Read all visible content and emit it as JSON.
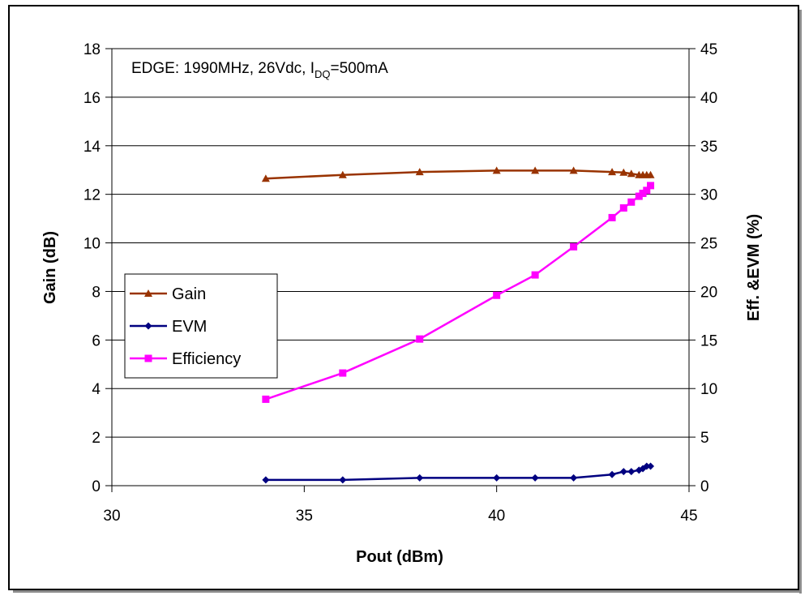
{
  "chart_data": {
    "type": "line",
    "annotation": {
      "prefix": "EDGE:  1990MHz, 26Vdc, I",
      "subscript": "DQ",
      "suffix": "=500mA"
    },
    "xlabel": "Pout (dBm)",
    "ylabel": "Gain (dB)",
    "y2label": "Eff. &EVM (%)",
    "xlim": [
      30,
      45
    ],
    "ylim": [
      0,
      18
    ],
    "y2lim": [
      0,
      45
    ],
    "xticks": [
      30,
      35,
      40,
      45
    ],
    "yticks": [
      0,
      2,
      4,
      6,
      8,
      10,
      12,
      14,
      16,
      18
    ],
    "y2ticks": [
      0,
      5,
      10,
      15,
      20,
      25,
      30,
      35,
      40,
      45
    ],
    "grid": "horizontal",
    "legend_position": "left-center",
    "series": [
      {
        "name": "Gain",
        "axis": "left",
        "color": "#993300",
        "marker": "triangle",
        "x": [
          34,
          36,
          38,
          40,
          41,
          42,
          43,
          43.3,
          43.5,
          43.7,
          43.8,
          43.9,
          44
        ],
        "y": [
          12.65,
          12.8,
          12.92,
          12.98,
          12.98,
          12.98,
          12.92,
          12.9,
          12.85,
          12.8,
          12.8,
          12.8,
          12.8
        ]
      },
      {
        "name": "EVM",
        "axis": "right",
        "color": "#000080",
        "marker": "diamond",
        "x": [
          34,
          36,
          38,
          40,
          41,
          42,
          43,
          43.3,
          43.5,
          43.7,
          43.8,
          43.9,
          44
        ],
        "y": [
          0.6,
          0.6,
          0.8,
          0.8,
          0.8,
          0.8,
          1.15,
          1.45,
          1.45,
          1.6,
          1.75,
          2.0,
          2.0
        ]
      },
      {
        "name": "Efficiency",
        "axis": "right",
        "color": "#ff00ff",
        "marker": "square",
        "x": [
          34,
          36,
          38,
          40,
          41,
          42,
          43,
          43.3,
          43.5,
          43.7,
          43.8,
          43.9,
          44
        ],
        "y": [
          8.9,
          11.6,
          15.1,
          19.6,
          21.7,
          24.6,
          27.6,
          28.6,
          29.2,
          29.8,
          30.1,
          30.4,
          30.9
        ]
      }
    ]
  }
}
